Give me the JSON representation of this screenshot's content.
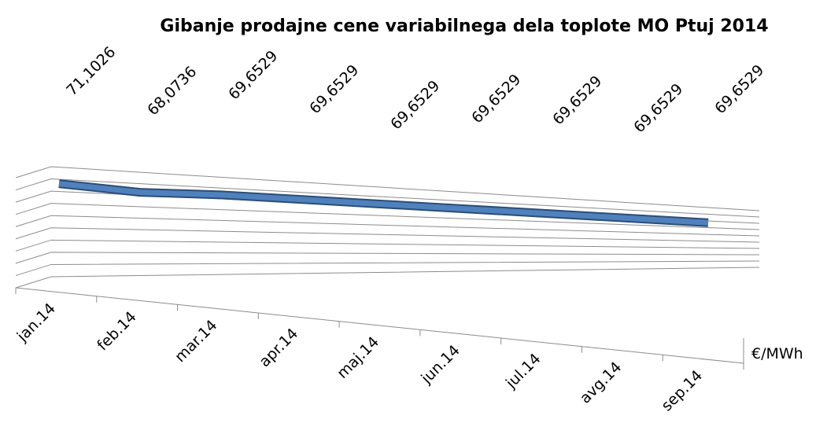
{
  "chart_data": {
    "type": "line3d",
    "title": "Gibanje prodajne cene variabilnega dela toplote MO Ptuj 2014",
    "categories": [
      "jan.14",
      "feb.14",
      "mar.14",
      "apr.14",
      "maj.14",
      "jun.14",
      "jul.14",
      "avg.14",
      "sep.14"
    ],
    "series": [
      {
        "name": "€/MWh",
        "color": "#4f81bd",
        "values": [
          71.1026,
          68.0736,
          69.6529,
          69.6529,
          69.6529,
          69.6529,
          69.6529,
          69.6529,
          69.6529
        ],
        "value_labels": [
          "71,1026",
          "68,0736",
          "69,6529",
          "69,6529",
          "69,6529",
          "69,6529",
          "69,6529",
          "69,6529",
          "69,6529"
        ]
      }
    ],
    "ylim": [
      0,
      80
    ],
    "grid": true
  }
}
